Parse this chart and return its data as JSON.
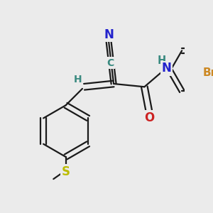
{
  "bg_color": "#ebebeb",
  "bond_color": "#1a1a1a",
  "bond_width": 1.6,
  "atom_colors": {
    "C": "#3a8a80",
    "N_cyan": "#3a8a80",
    "N_blue": "#2222cc",
    "O": "#cc2222",
    "S": "#bbbb00",
    "Br": "#cc8822",
    "H": "#3a8a80"
  },
  "font_size": 10.5
}
